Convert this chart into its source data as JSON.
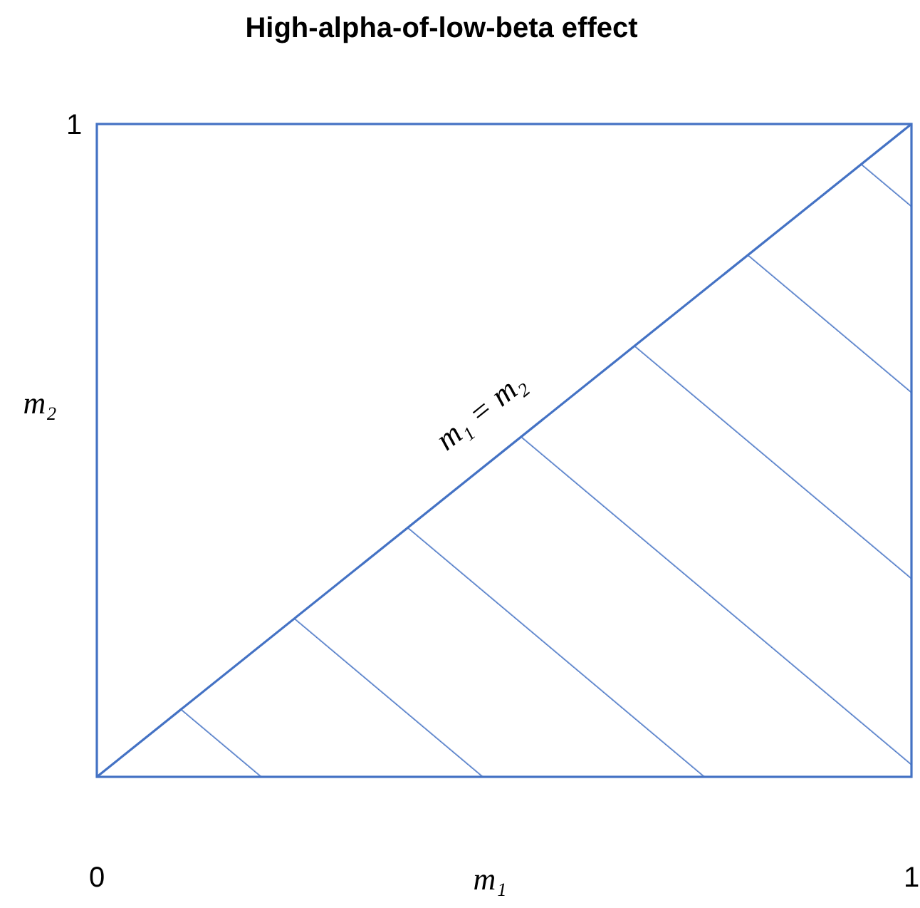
{
  "chart_data": {
    "type": "area",
    "title": "High-alpha-of-low-beta effect",
    "xlabel": "m₁",
    "ylabel": "m₂",
    "x": [
      0,
      1
    ],
    "series": [
      {
        "color": "#4472c4",
        "values": [
          0,
          1
        ]
      }
    ],
    "xlim": [
      0,
      1
    ],
    "ylim": [
      0,
      1
    ],
    "xticks": [
      0,
      1
    ],
    "yticks": [
      1
    ],
    "annotations": [
      {
        "text": "m₁ = m₂",
        "x": 0.5,
        "y": 0.5
      }
    ]
  }
}
